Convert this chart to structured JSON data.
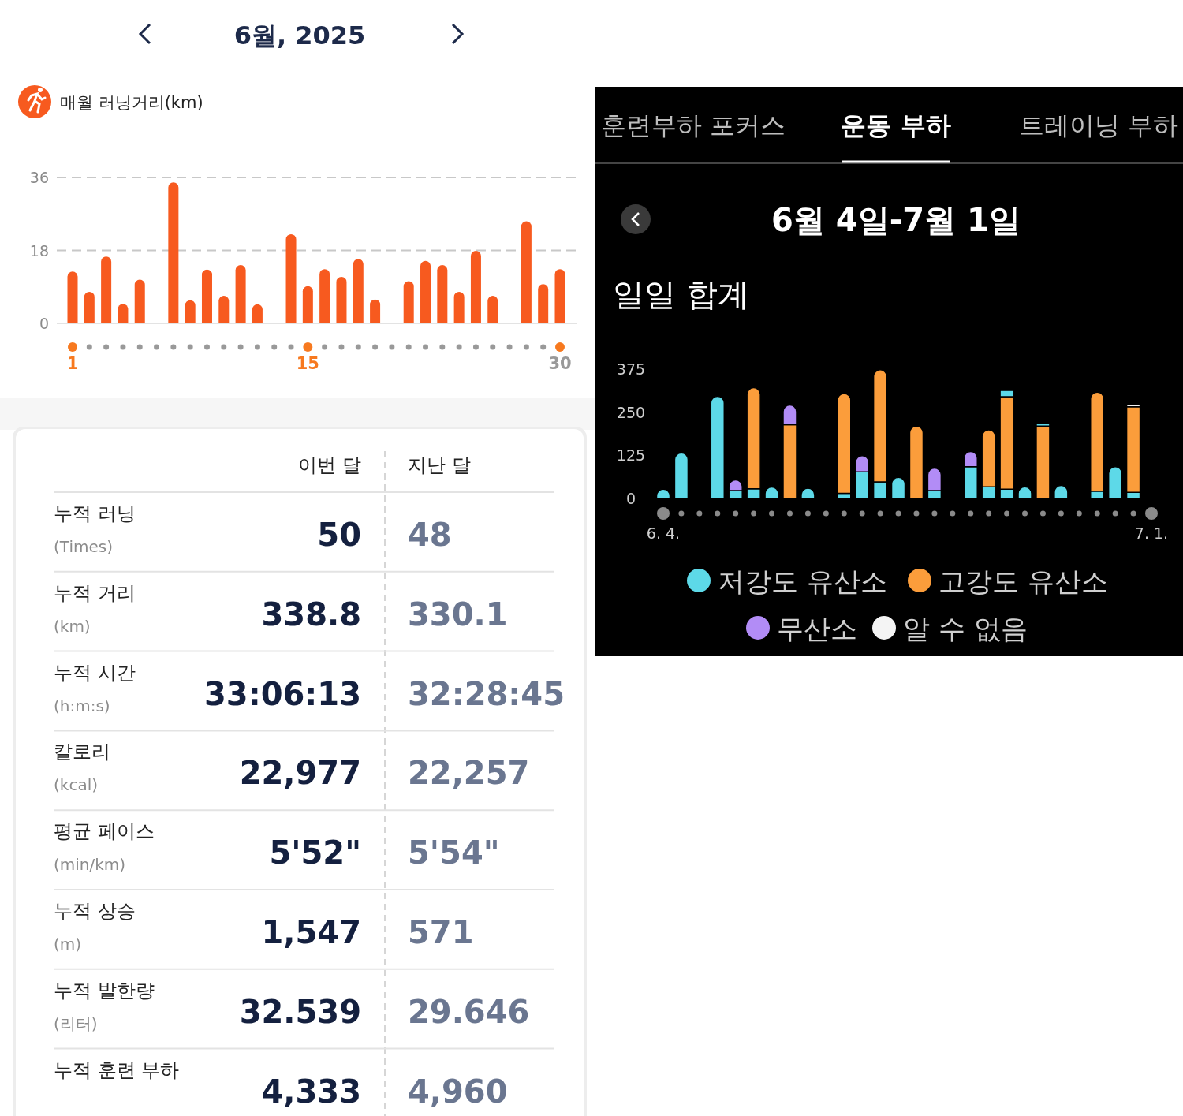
{
  "chart_data": [
    {
      "type": "bar",
      "title": "6월, 2025",
      "subtitle": "매월 러닝거리(km)",
      "categories": [
        "1",
        null,
        null,
        null,
        null,
        null,
        null,
        null,
        null,
        null,
        null,
        null,
        null,
        null,
        "15",
        null,
        null,
        null,
        null,
        null,
        null,
        null,
        null,
        null,
        null,
        null,
        null,
        null,
        null,
        "30"
      ],
      "values": [
        12.8,
        7.8,
        16.5,
        4.8,
        10.8,
        null,
        34.8,
        5.7,
        13.3,
        6.8,
        14.4,
        4.7,
        0.2,
        22.0,
        9.2,
        13.4,
        11.5,
        15.9,
        5.9,
        null,
        10.4,
        15.4,
        14.4,
        7.8,
        17.9,
        6.8,
        null,
        25.2,
        9.7,
        13.4
      ],
      "color": "#f75a1f",
      "ylim": [
        0,
        36
      ],
      "yticks": [
        0,
        18,
        36
      ],
      "grid": "y"
    },
    {
      "type": "bar",
      "title": "6월 4일-7월 1일",
      "subtitle": "일일 합계",
      "annotations": [
        "훈련부하 포커스",
        "운동 부하",
        "트레이닝 부하"
      ],
      "stacked": true,
      "legend": "bottom",
      "categories": [
        "6. 4.",
        null,
        null,
        null,
        null,
        null,
        null,
        null,
        null,
        null,
        null,
        null,
        null,
        null,
        null,
        null,
        null,
        null,
        null,
        null,
        null,
        null,
        null,
        null,
        null,
        null,
        null,
        "7. 1."
      ],
      "series": [
        {
          "name": "저강도 유산소",
          "color": "#5dd9e8",
          "values": [
            27,
            132,
            null,
            296,
            23,
            28,
            33,
            null,
            30,
            null,
            15,
            77,
            48,
            61,
            null,
            23,
            null,
            92,
            34,
            27,
            34,
            null,
            38,
            null,
            21,
            92,
            18,
            null
          ]
        },
        {
          "name": "고강도 유산소",
          "color": "#fb9d3b",
          "values": [
            null,
            null,
            null,
            null,
            null,
            293,
            null,
            214,
            null,
            null,
            289,
            null,
            325,
            null,
            210,
            null,
            null,
            null,
            165,
            268,
            null,
            210,
            null,
            null,
            287,
            null,
            248,
            null
          ]
        },
        {
          "name": "무산소",
          "color": "#b28cf6",
          "values": [
            null,
            null,
            null,
            null,
            31,
            null,
            null,
            57,
            null,
            null,
            null,
            47,
            null,
            null,
            null,
            65,
            null,
            44,
            null,
            null,
            null,
            null,
            null,
            null,
            null,
            null,
            null,
            null
          ]
        },
        {
          "color": "#5dd9e8",
          "values": [
            null,
            null,
            null,
            null,
            null,
            null,
            null,
            null,
            null,
            null,
            null,
            null,
            null,
            null,
            null,
            null,
            null,
            null,
            null,
            18,
            null,
            9,
            null,
            null,
            null,
            null,
            null,
            null
          ]
        },
        {
          "name": "알 수 없음",
          "color": "#f4f4f4",
          "values": [
            null,
            null,
            null,
            null,
            null,
            null,
            null,
            null,
            null,
            null,
            null,
            null,
            null,
            null,
            null,
            null,
            null,
            null,
            null,
            null,
            null,
            null,
            null,
            null,
            null,
            null,
            8,
            null
          ]
        }
      ],
      "ylim": [
        0,
        375
      ],
      "yticks": [
        0,
        125,
        250,
        375
      ]
    },
    {
      "type": "other",
      "categories": [
        "이번 달",
        "지난 달"
      ],
      "annotations": [
        "누적 러닝",
        "(Times)",
        "50",
        "48",
        "누적 거리",
        "(km)",
        "338.8",
        "330.1",
        "누적 시간",
        "(h:m:s)",
        "33:06:13",
        "32:28:45",
        "칼로리",
        "(kcal)",
        "22,977",
        "22,257",
        "평균 페이스",
        "(min/km)",
        "5'52\"",
        "5'54\"",
        "누적 상승",
        "(m)",
        "1,547",
        "571",
        "누적 발한량",
        "(리터)",
        "32.539",
        "29.646",
        "누적 훈련 부하",
        null,
        "4,333",
        "4,960"
      ]
    }
  ]
}
